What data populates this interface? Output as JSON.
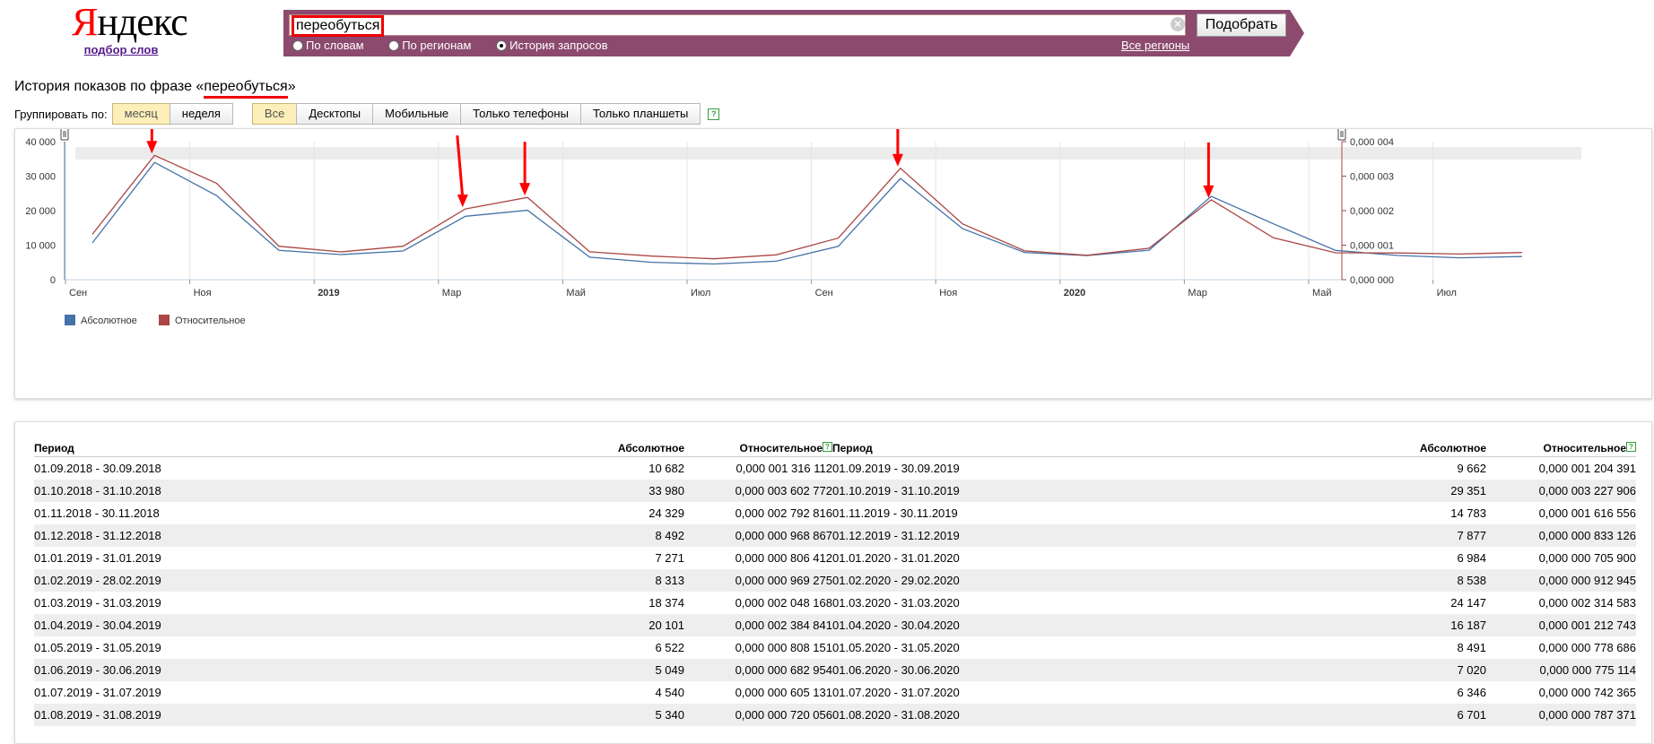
{
  "logo": {
    "brand": "Яндекс",
    "sub": "подбор слов"
  },
  "search": {
    "query": "переобуться",
    "submit_label": "Подобрать",
    "radios": [
      {
        "label": "По словам",
        "checked": false
      },
      {
        "label": "По регионам",
        "checked": false
      },
      {
        "label": "История запросов",
        "checked": true
      }
    ],
    "regions_label": "Все регионы"
  },
  "title": {
    "prefix": "История показов по фразе «",
    "phrase": "переобуться",
    "suffix": "»"
  },
  "grouping": {
    "label": "Группировать по:",
    "options": [
      {
        "label": "месяц",
        "active": true
      },
      {
        "label": "неделя",
        "active": false
      }
    ]
  },
  "devices": [
    {
      "label": "Все",
      "active": true
    },
    {
      "label": "Десктопы",
      "active": false
    },
    {
      "label": "Мобильные",
      "active": false
    },
    {
      "label": "Только телефоны",
      "active": false
    },
    {
      "label": "Только планшеты",
      "active": false
    }
  ],
  "colors": {
    "absolute": "#4572a7",
    "relative": "#aa4643",
    "accent": "#8c4a6e",
    "arrow": "#ff0000"
  },
  "chart_data": {
    "type": "line",
    "x": [
      "2018-09",
      "2018-10",
      "2018-11",
      "2018-12",
      "2019-01",
      "2019-02",
      "2019-03",
      "2019-04",
      "2019-05",
      "2019-06",
      "2019-07",
      "2019-08",
      "2019-09",
      "2019-10",
      "2019-11",
      "2019-12",
      "2020-01",
      "2020-02",
      "2020-03",
      "2020-04",
      "2020-05",
      "2020-06",
      "2020-07",
      "2020-08"
    ],
    "x_ticks": [
      "Сен",
      "Ноя",
      "2019",
      "Мар",
      "Май",
      "Июл",
      "Сен",
      "Ноя",
      "2020",
      "Мар",
      "Май",
      "Июл"
    ],
    "y_left": {
      "ticks": [
        "0",
        "10 000",
        "20 000",
        "30 000",
        "40 000"
      ],
      "range": [
        0,
        40000
      ]
    },
    "y_right": {
      "ticks": [
        "0,000 000",
        "0,000 001",
        "0,000 002",
        "0,000 003",
        "0,000 004"
      ],
      "range": [
        0,
        4e-06
      ]
    },
    "series": [
      {
        "name": "Абсолютное",
        "axis": "left",
        "values": [
          10682,
          33980,
          24329,
          8492,
          7271,
          8313,
          18374,
          20101,
          6522,
          5049,
          4540,
          5340,
          9662,
          29351,
          14783,
          7877,
          6984,
          8538,
          24147,
          16187,
          8491,
          7020,
          6346,
          6701
        ]
      },
      {
        "name": "Относительное",
        "axis": "right",
        "values": [
          1.316112e-06,
          3.602772e-06,
          2.792816e-06,
          9.68867e-07,
          8.06412e-07,
          9.69275e-07,
          2.048168e-06,
          2.384841e-06,
          8.08151e-07,
          6.82954e-07,
          6.05131e-07,
          7.20056e-07,
          1.204391e-06,
          3.227906e-06,
          1.616556e-06,
          8.33126e-07,
          7.059e-07,
          9.12945e-07,
          2.314583e-06,
          1.212743e-06,
          7.78686e-07,
          7.75114e-07,
          7.42365e-07,
          7.87371e-07
        ]
      }
    ],
    "annotations_arrows_at": [
      "2018-10",
      "2019-03",
      "2019-04",
      "2019-10",
      "2020-03"
    ],
    "legend_position": "bottom-left",
    "grid": true
  },
  "table": {
    "headers": {
      "period": "Период",
      "absolute": "Абсолютное",
      "relative": "Относительное"
    },
    "left": [
      {
        "period": "01.09.2018 - 30.09.2018",
        "abs": "10 682",
        "rel": "0,000 001 316 112"
      },
      {
        "period": "01.10.2018 - 31.10.2018",
        "abs": "33 980",
        "rel": "0,000 003 602 772"
      },
      {
        "period": "01.11.2018 - 30.11.2018",
        "abs": "24 329",
        "rel": "0,000 002 792 816"
      },
      {
        "period": "01.12.2018 - 31.12.2018",
        "abs": "8 492",
        "rel": "0,000 000 968 867"
      },
      {
        "period": "01.01.2019 - 31.01.2019",
        "abs": "7 271",
        "rel": "0,000 000 806 412"
      },
      {
        "period": "01.02.2019 - 28.02.2019",
        "abs": "8 313",
        "rel": "0,000 000 969 275"
      },
      {
        "period": "01.03.2019 - 31.03.2019",
        "abs": "18 374",
        "rel": "0,000 002 048 168"
      },
      {
        "period": "01.04.2019 - 30.04.2019",
        "abs": "20 101",
        "rel": "0,000 002 384 841"
      },
      {
        "period": "01.05.2019 - 31.05.2019",
        "abs": "6 522",
        "rel": "0,000 000 808 151"
      },
      {
        "period": "01.06.2019 - 30.06.2019",
        "abs": "5 049",
        "rel": "0,000 000 682 954"
      },
      {
        "period": "01.07.2019 - 31.07.2019",
        "abs": "4 540",
        "rel": "0,000 000 605 131"
      },
      {
        "period": "01.08.2019 - 31.08.2019",
        "abs": "5 340",
        "rel": "0,000 000 720 056"
      }
    ],
    "right": [
      {
        "period": "01.09.2019 - 30.09.2019",
        "abs": "9 662",
        "rel": "0,000 001 204 391"
      },
      {
        "period": "01.10.2019 - 31.10.2019",
        "abs": "29 351",
        "rel": "0,000 003 227 906"
      },
      {
        "period": "01.11.2019 - 30.11.2019",
        "abs": "14 783",
        "rel": "0,000 001 616 556"
      },
      {
        "period": "01.12.2019 - 31.12.2019",
        "abs": "7 877",
        "rel": "0,000 000 833 126"
      },
      {
        "period": "01.01.2020 - 31.01.2020",
        "abs": "6 984",
        "rel": "0,000 000 705 900"
      },
      {
        "period": "01.02.2020 - 29.02.2020",
        "abs": "8 538",
        "rel": "0,000 000 912 945"
      },
      {
        "period": "01.03.2020 - 31.03.2020",
        "abs": "24 147",
        "rel": "0,000 002 314 583"
      },
      {
        "period": "01.04.2020 - 30.04.2020",
        "abs": "16 187",
        "rel": "0,000 001 212 743"
      },
      {
        "period": "01.05.2020 - 31.05.2020",
        "abs": "8 491",
        "rel": "0,000 000 778 686"
      },
      {
        "period": "01.06.2020 - 30.06.2020",
        "abs": "7 020",
        "rel": "0,000 000 775 114"
      },
      {
        "period": "01.07.2020 - 31.07.2020",
        "abs": "6 346",
        "rel": "0,000 000 742 365"
      },
      {
        "period": "01.08.2020 - 31.08.2020",
        "abs": "6 701",
        "rel": "0,000 000 787 371"
      }
    ]
  }
}
